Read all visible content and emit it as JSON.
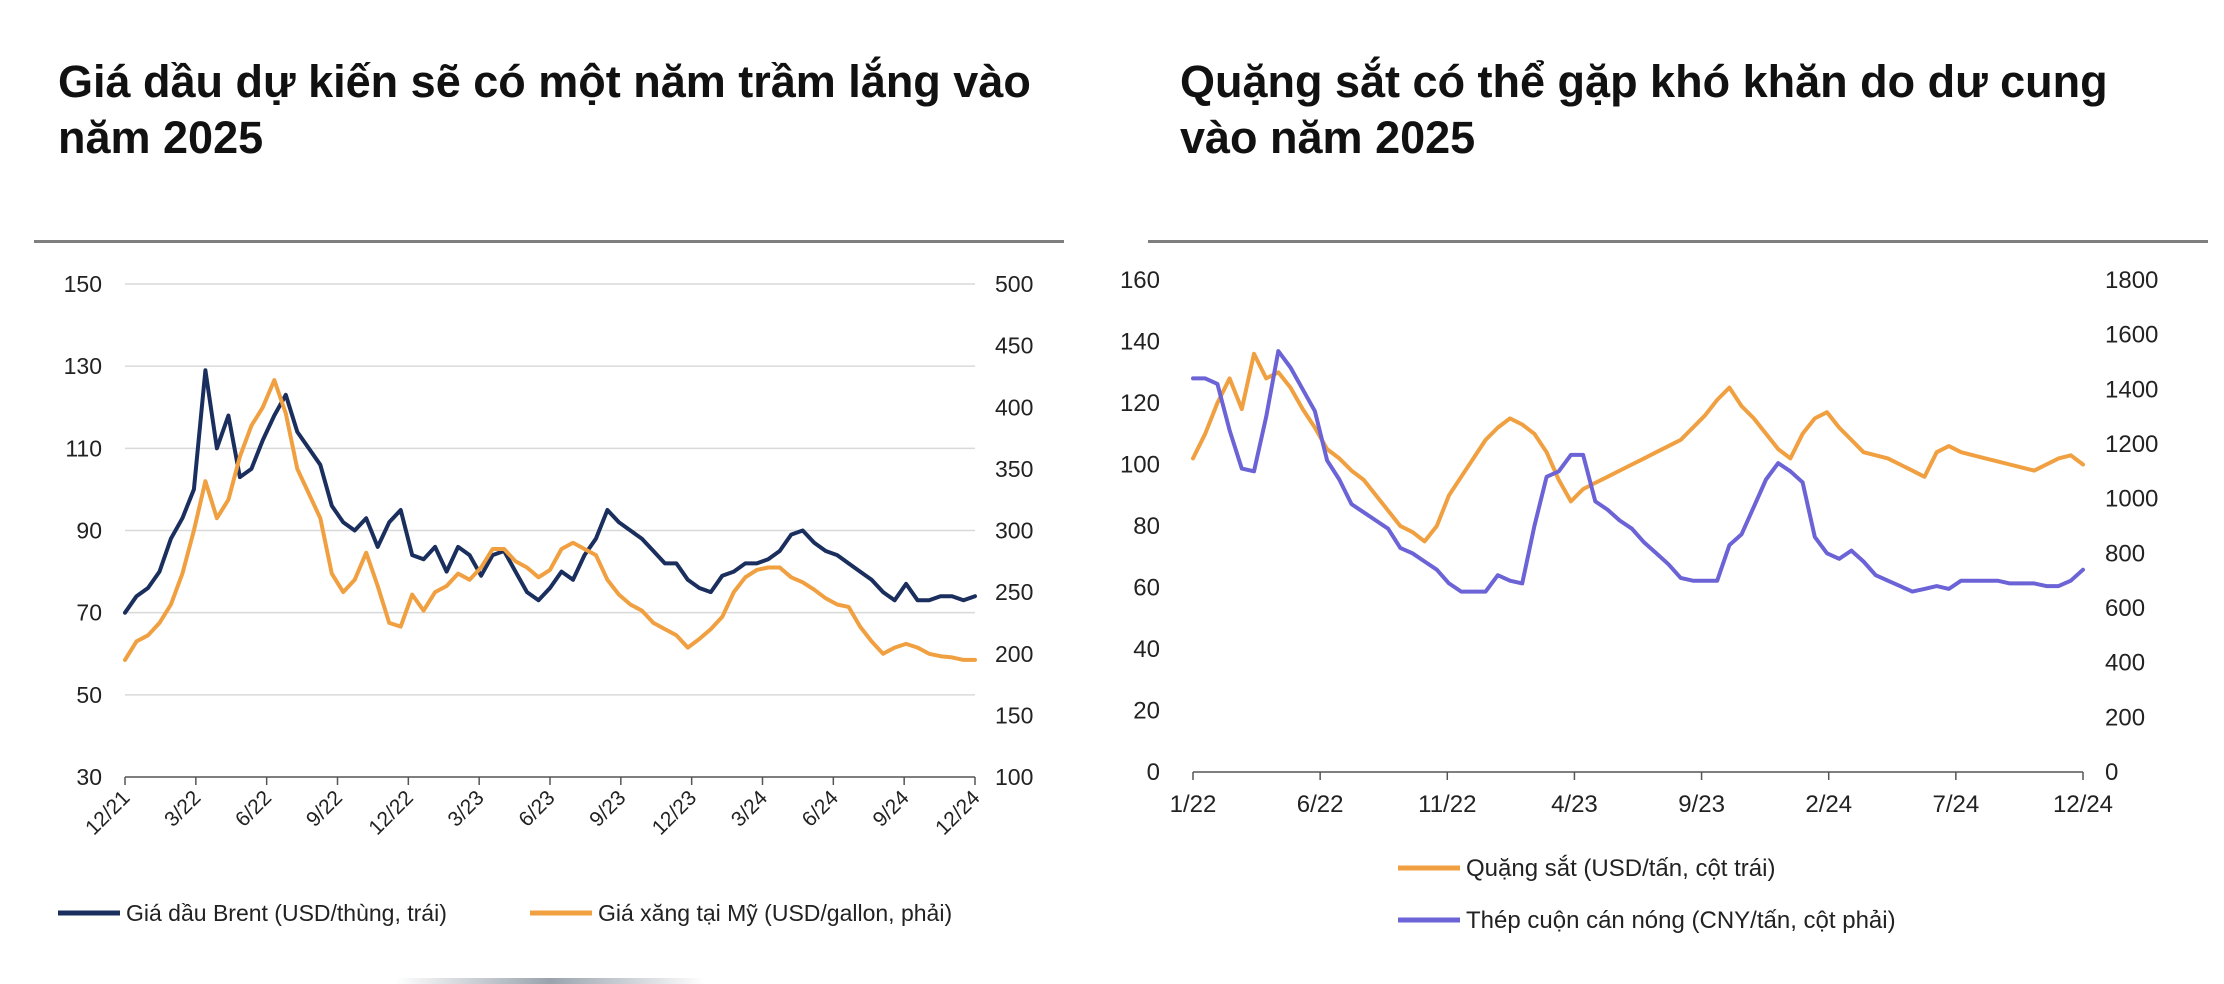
{
  "left": {
    "title": "Giá dầu dự kiến sẽ có một năm trầm lắng vào năm 2025",
    "legend": [
      "Giá dầu Brent (USD/thùng, trái)",
      "Giá xăng tại Mỹ (USD/gallon, phải)"
    ],
    "colors": {
      "brent": "#1b2f5e",
      "gasoline": "#f0a040"
    }
  },
  "right": {
    "title": "Quặng sắt có thể gặp khó khăn do dư cung vào năm 2025",
    "legend": [
      "Quặng sắt (USD/tấn, cột trái)",
      "Thép cuộn cán nóng (CNY/tấn, cột phải)"
    ],
    "colors": {
      "ore": "#f0a040",
      "steel": "#6b63d6"
    }
  },
  "chart_data": [
    {
      "type": "line",
      "title": "Giá dầu dự kiến sẽ có một năm trầm lắng vào năm 2025",
      "x_ticks": [
        "12/21",
        "3/22",
        "6/22",
        "9/22",
        "12/22",
        "3/23",
        "6/23",
        "9/23",
        "12/23",
        "3/24",
        "6/24",
        "9/24",
        "12/24"
      ],
      "y_left_ticks": [
        30,
        50,
        70,
        90,
        110,
        130,
        150
      ],
      "y_right_ticks": [
        100,
        150,
        200,
        250,
        300,
        350,
        400,
        450,
        500
      ],
      "ylim_left": [
        30,
        150
      ],
      "ylim_right": [
        100,
        500
      ],
      "grid": true,
      "legend_position": "bottom",
      "x_months": [
        0,
        0.5,
        1,
        1.5,
        2,
        2.5,
        3,
        3.5,
        4,
        4.5,
        5,
        5.5,
        6,
        6.5,
        7,
        7.5,
        8,
        8.5,
        9,
        9.5,
        10,
        10.5,
        11,
        11.5,
        12,
        12.5,
        13,
        13.5,
        14,
        14.5,
        15,
        15.5,
        16,
        16.5,
        17,
        17.5,
        18,
        18.5,
        19,
        19.5,
        20,
        20.5,
        21,
        21.5,
        22,
        22.5,
        23,
        23.5,
        24,
        24.5,
        25,
        25.5,
        26,
        26.5,
        27,
        27.5,
        28,
        28.5,
        29,
        29.5,
        30,
        30.5,
        31,
        31.5,
        32,
        32.5,
        33,
        33.5,
        34,
        34.5,
        35,
        35.5,
        36,
        36.5,
        37
      ],
      "series": [
        {
          "name": "Giá dầu Brent (USD/thùng, trái)",
          "axis": "left",
          "values": [
            70,
            74,
            76,
            80,
            88,
            93,
            100,
            129,
            110,
            118,
            103,
            105,
            112,
            118,
            123,
            114,
            110,
            106,
            96,
            92,
            90,
            93,
            86,
            92,
            95,
            84,
            83,
            86,
            80,
            86,
            84,
            79,
            84,
            85,
            80,
            75,
            73,
            76,
            80,
            78,
            84,
            88,
            95,
            92,
            90,
            88,
            85,
            82,
            82,
            78,
            76,
            75,
            79,
            80,
            82,
            82,
            83,
            85,
            89,
            90,
            87,
            85,
            84,
            82,
            80,
            78,
            75,
            73,
            77,
            73,
            73,
            74,
            74,
            73,
            74
          ]
        },
        {
          "name": "Giá xăng tại Mỹ (USD/gallon, phải)",
          "axis": "right",
          "values": [
            195,
            210,
            215,
            225,
            240,
            265,
            300,
            340,
            310,
            325,
            360,
            385,
            400,
            422,
            395,
            350,
            330,
            310,
            265,
            250,
            260,
            282,
            255,
            225,
            222,
            248,
            235,
            250,
            255,
            265,
            260,
            270,
            285,
            285,
            275,
            270,
            262,
            268,
            285,
            290,
            285,
            280,
            260,
            248,
            240,
            235,
            225,
            220,
            215,
            205,
            212,
            220,
            230,
            250,
            262,
            268,
            270,
            270,
            262,
            258,
            252,
            245,
            240,
            238,
            222,
            210,
            200,
            205,
            208,
            205,
            200,
            198,
            197,
            195,
            195
          ]
        }
      ]
    },
    {
      "type": "line",
      "title": "Quặng sắt có thể gặp khó khăn do dư cung vào năm 2025",
      "x_ticks": [
        "1/22",
        "6/22",
        "11/22",
        "4/23",
        "9/23",
        "2/24",
        "7/24",
        "12/24"
      ],
      "y_left_ticks": [
        0,
        20,
        40,
        60,
        80,
        100,
        120,
        140,
        160
      ],
      "y_right_ticks": [
        0,
        200,
        400,
        600,
        800,
        1000,
        1200,
        1400,
        1600,
        1800
      ],
      "ylim_left": [
        0,
        160
      ],
      "ylim_right": [
        0,
        1800
      ],
      "grid": false,
      "legend_position": "bottom",
      "x_months": [
        0,
        0.5,
        1,
        1.5,
        2,
        2.5,
        3,
        3.5,
        4,
        4.5,
        5,
        5.5,
        6,
        6.5,
        7,
        7.5,
        8,
        8.5,
        9,
        9.5,
        10,
        10.5,
        11,
        11.5,
        12,
        12.5,
        13,
        13.5,
        14,
        14.5,
        15,
        15.5,
        16,
        16.5,
        17,
        17.5,
        18,
        18.5,
        19,
        19.5,
        20,
        20.5,
        21,
        21.5,
        22,
        22.5,
        23,
        23.5,
        24,
        24.5,
        25,
        25.5,
        26,
        26.5,
        27,
        27.5,
        28,
        28.5,
        29,
        29.5,
        30,
        30.5,
        31,
        31.5,
        32,
        32.5,
        33,
        33.5,
        34,
        34.5,
        35,
        35.5,
        36,
        36.5
      ],
      "series": [
        {
          "name": "Quặng sắt (USD/tấn, cột trái)",
          "axis": "left",
          "values": [
            102,
            110,
            120,
            128,
            118,
            136,
            128,
            130,
            125,
            118,
            112,
            105,
            102,
            98,
            95,
            90,
            85,
            80,
            78,
            75,
            80,
            90,
            96,
            102,
            108,
            112,
            115,
            113,
            110,
            104,
            95,
            88,
            92,
            94,
            96,
            98,
            100,
            102,
            104,
            106,
            108,
            112,
            116,
            121,
            125,
            119,
            115,
            110,
            105,
            102,
            110,
            115,
            117,
            112,
            108,
            104,
            103,
            102,
            100,
            98,
            96,
            104,
            106,
            104,
            103,
            102,
            101,
            100,
            99,
            98,
            100,
            102,
            103,
            100
          ]
        },
        {
          "name": "Thép cuộn cán nóng (CNY/tấn, cột phải)",
          "axis": "right",
          "values": [
            1440,
            1440,
            1420,
            1250,
            1110,
            1100,
            1300,
            1540,
            1480,
            1400,
            1320,
            1140,
            1070,
            980,
            950,
            920,
            890,
            820,
            800,
            770,
            740,
            690,
            660,
            660,
            660,
            720,
            700,
            690,
            900,
            1080,
            1100,
            1160,
            1160,
            990,
            960,
            920,
            890,
            840,
            800,
            760,
            710,
            700,
            700,
            700,
            830,
            870,
            970,
            1070,
            1130,
            1100,
            1060,
            860,
            800,
            780,
            810,
            770,
            720,
            700,
            680,
            660,
            670,
            680,
            670,
            700,
            700,
            700,
            700,
            690,
            690,
            690,
            680,
            680,
            700,
            740
          ]
        }
      ]
    }
  ]
}
